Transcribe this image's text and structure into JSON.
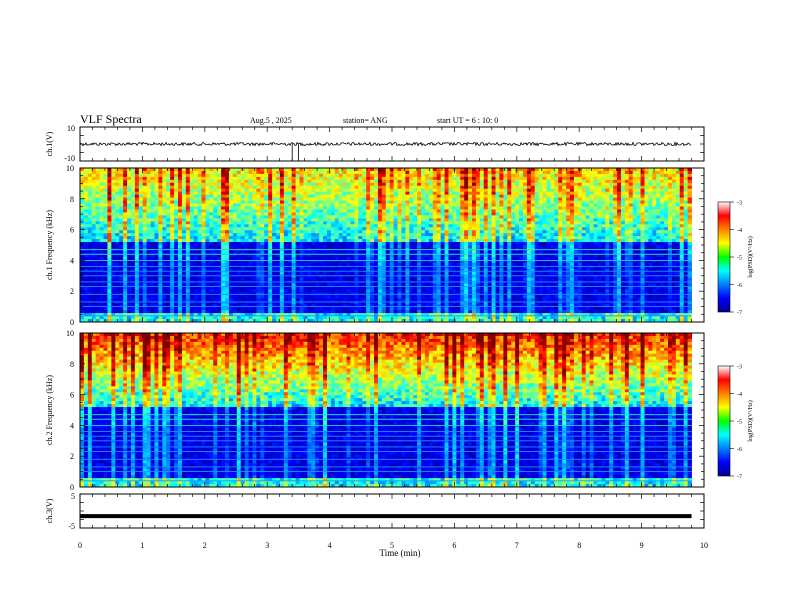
{
  "header": {
    "title": "VLF Spectra",
    "date": "Aug.5 , 2025",
    "station": "station= ANG",
    "start": "start UT = 6 : 10: 0"
  },
  "chart_data": [
    {
      "id": "ch1-waveform",
      "type": "line",
      "ylabel": "ch.1(V)",
      "ylim": [
        -10,
        10
      ],
      "yticks": [
        "10",
        "-10"
      ],
      "xlim": [
        0,
        10
      ],
      "data_end_min": 9.8,
      "baseline": 0,
      "spikes": [
        {
          "x": 3.4,
          "y": -10
        },
        {
          "x": 3.5,
          "y": -10
        }
      ]
    },
    {
      "id": "ch1-spectrogram",
      "type": "heatmap",
      "ylabel": "ch.1 Frequency (kHz)",
      "ylim": [
        0,
        10
      ],
      "yticks": [
        "0",
        "2",
        "4",
        "6",
        "8",
        "10"
      ],
      "xlim": [
        0,
        10
      ],
      "data_end_min": 9.8,
      "colorbar": {
        "label": "log(PSD)(V²/Hz)",
        "range": [
          -7,
          -3
        ],
        "ticks": [
          "-3",
          "-4",
          "-5",
          "-6",
          "-7"
        ]
      }
    },
    {
      "id": "ch2-spectrogram",
      "type": "heatmap",
      "ylabel": "ch.2 Frequency (kHz)",
      "ylim": [
        0,
        10
      ],
      "yticks": [
        "0",
        "2",
        "4",
        "6",
        "8",
        "10"
      ],
      "xlim": [
        0,
        10
      ],
      "data_end_min": 9.8,
      "colorbar": {
        "label": "log(PSD)(V²/Hz)",
        "range": [
          -7,
          -3
        ],
        "ticks": [
          "-3",
          "-4",
          "-5",
          "-6",
          "-7"
        ]
      }
    },
    {
      "id": "ch3-waveform",
      "type": "line",
      "ylabel": "ch.3(V)",
      "ylim": [
        -5,
        5
      ],
      "yticks": [
        "5",
        "-5"
      ],
      "xlim": [
        0,
        10
      ],
      "data_end_min": 9.8,
      "baseline": -1.5
    }
  ],
  "xaxis": {
    "label": "Time (min)",
    "ticks": [
      "0",
      "1",
      "2",
      "3",
      "4",
      "5",
      "6",
      "7",
      "8",
      "9",
      "10"
    ]
  }
}
